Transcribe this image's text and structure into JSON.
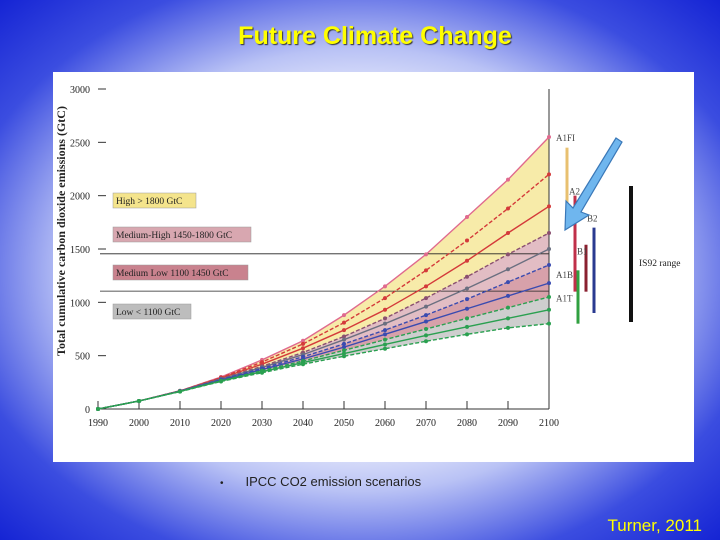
{
  "slide": {
    "title": "Future Climate Change",
    "bullet": "IPCC CO2 emission scenarios",
    "credit": "Turner, 2011"
  },
  "chart_data": {
    "type": "line",
    "ylabel": "Total cumulative carbon dioxide emissions (GtC)",
    "xlim": [
      1990,
      2100
    ],
    "ylim": [
      0,
      3000
    ],
    "x_ticks": [
      "1990",
      "2000",
      "2010",
      "2020",
      "2030",
      "2040",
      "2050",
      "2060",
      "2070",
      "2080",
      "2090",
      "2100"
    ],
    "y_ticks": [
      "0",
      "500",
      "1000",
      "1500",
      "2000",
      "2500",
      "3000"
    ],
    "bands": [
      {
        "label": "High > 1800 GtC",
        "color": "#f4e48c"
      },
      {
        "label": "Medium-High 1450-1800 GtC",
        "color": "#d8a7b0"
      },
      {
        "label": "Medium Low 1100 1450 GtC",
        "color": "#c9828e"
      },
      {
        "label": "Low < 1100 GtC",
        "color": "#bdbdbd"
      }
    ],
    "scenario_labels": [
      "A1FI",
      "A2",
      "B2",
      "B1",
      "A1B",
      "A1T"
    ],
    "range_label": "IS92 range",
    "series": [
      {
        "color": "#e06a8e",
        "values": [
          0,
          75,
          170,
          300,
          460,
          640,
          880,
          1150,
          1450,
          1800,
          2150,
          2550
        ]
      },
      {
        "color": "#d43a3a",
        "values": [
          0,
          75,
          170,
          295,
          440,
          610,
          810,
          1040,
          1300,
          1580,
          1880,
          2200
        ]
      },
      {
        "color": "#d43a3a",
        "values": [
          0,
          75,
          170,
          290,
          420,
          570,
          740,
          930,
          1150,
          1390,
          1650,
          1900
        ]
      },
      {
        "color": "#8a5070",
        "values": [
          0,
          75,
          170,
          285,
          400,
          530,
          680,
          850,
          1040,
          1240,
          1450,
          1650
        ]
      },
      {
        "color": "#6a6f80",
        "values": [
          0,
          75,
          168,
          280,
          390,
          510,
          650,
          800,
          960,
          1130,
          1310,
          1500
        ]
      },
      {
        "color": "#3a4bb0",
        "values": [
          0,
          75,
          167,
          275,
          380,
          490,
          610,
          740,
          880,
          1030,
          1190,
          1350
        ]
      },
      {
        "color": "#3a4bb0",
        "values": [
          0,
          75,
          166,
          270,
          370,
          470,
          580,
          700,
          820,
          940,
          1060,
          1180
        ]
      },
      {
        "color": "#2aa050",
        "values": [
          0,
          75,
          165,
          265,
          360,
          450,
          550,
          650,
          750,
          850,
          950,
          1050
        ]
      },
      {
        "color": "#2aa050",
        "values": [
          0,
          75,
          164,
          262,
          350,
          435,
          520,
          605,
          690,
          770,
          850,
          930
        ]
      },
      {
        "color": "#2aa050",
        "values": [
          0,
          75,
          163,
          258,
          340,
          420,
          495,
          565,
          635,
          700,
          760,
          800
        ]
      }
    ]
  },
  "annotation": {
    "arrow_color": "#6fb6ee"
  }
}
